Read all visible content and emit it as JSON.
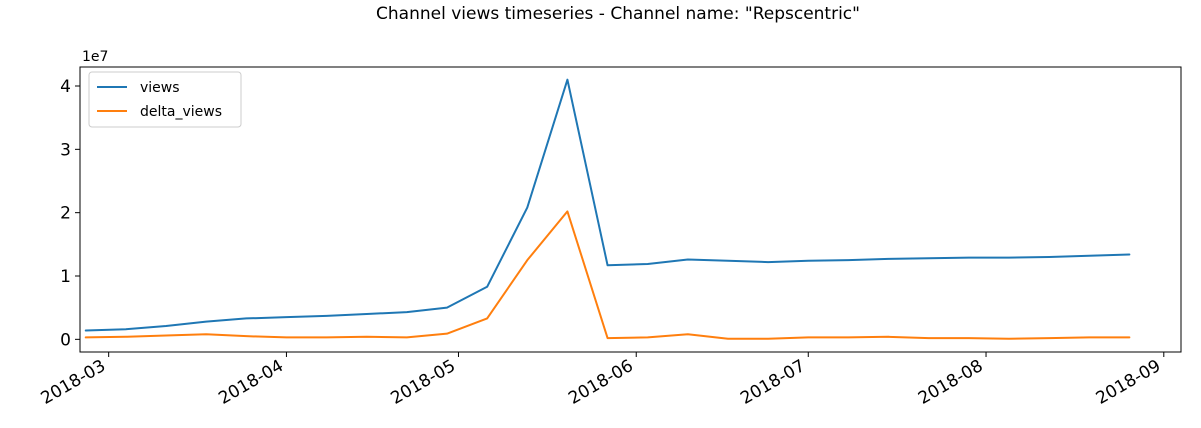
{
  "chart_data": {
    "type": "line",
    "title": "Channel views timeseries - Channel name: \"Repscentric\"",
    "xlabel": "",
    "ylabel": "",
    "y_scale_label": "1e7",
    "y_multiplier": 10000000,
    "ylim": [
      -0.2,
      4.3
    ],
    "xlim": [
      "2018-02-24",
      "2018-09-04"
    ],
    "y_ticks": [
      0,
      1,
      2,
      3,
      4
    ],
    "y_tick_labels": [
      "0",
      "1",
      "2",
      "3",
      "4"
    ],
    "x_ticks": [
      "2018-03-01",
      "2018-04-01",
      "2018-05-01",
      "2018-06-01",
      "2018-07-01",
      "2018-08-01",
      "2018-09-01"
    ],
    "x_tick_labels": [
      "2018-03",
      "2018-04",
      "2018-05",
      "2018-06",
      "2018-07",
      "2018-08",
      "2018-09"
    ],
    "legend_position": "top-left",
    "grid": false,
    "x": [
      "2018-02-25",
      "2018-03-04",
      "2018-03-11",
      "2018-03-18",
      "2018-03-25",
      "2018-04-01",
      "2018-04-08",
      "2018-04-15",
      "2018-04-22",
      "2018-04-29",
      "2018-05-06",
      "2018-05-13",
      "2018-05-20",
      "2018-05-27",
      "2018-06-03",
      "2018-06-10",
      "2018-06-17",
      "2018-06-24",
      "2018-07-01",
      "2018-07-08",
      "2018-07-15",
      "2018-07-22",
      "2018-07-29",
      "2018-08-05",
      "2018-08-12",
      "2018-08-19",
      "2018-08-26"
    ],
    "series": [
      {
        "name": "views",
        "color": "#1f77b4",
        "values": [
          0.14,
          0.16,
          0.21,
          0.28,
          0.33,
          0.35,
          0.37,
          0.4,
          0.43,
          0.5,
          0.83,
          2.08,
          4.1,
          1.17,
          1.19,
          1.26,
          1.24,
          1.22,
          1.24,
          1.25,
          1.27,
          1.28,
          1.29,
          1.29,
          1.3,
          1.32,
          1.34
        ]
      },
      {
        "name": "delta_views",
        "color": "#ff7f0e",
        "values": [
          0.03,
          0.04,
          0.06,
          0.08,
          0.05,
          0.03,
          0.03,
          0.04,
          0.03,
          0.09,
          0.33,
          1.25,
          2.02,
          0.02,
          0.03,
          0.08,
          0.01,
          0.01,
          0.03,
          0.03,
          0.04,
          0.02,
          0.02,
          0.01,
          0.02,
          0.03,
          0.03
        ]
      }
    ]
  }
}
